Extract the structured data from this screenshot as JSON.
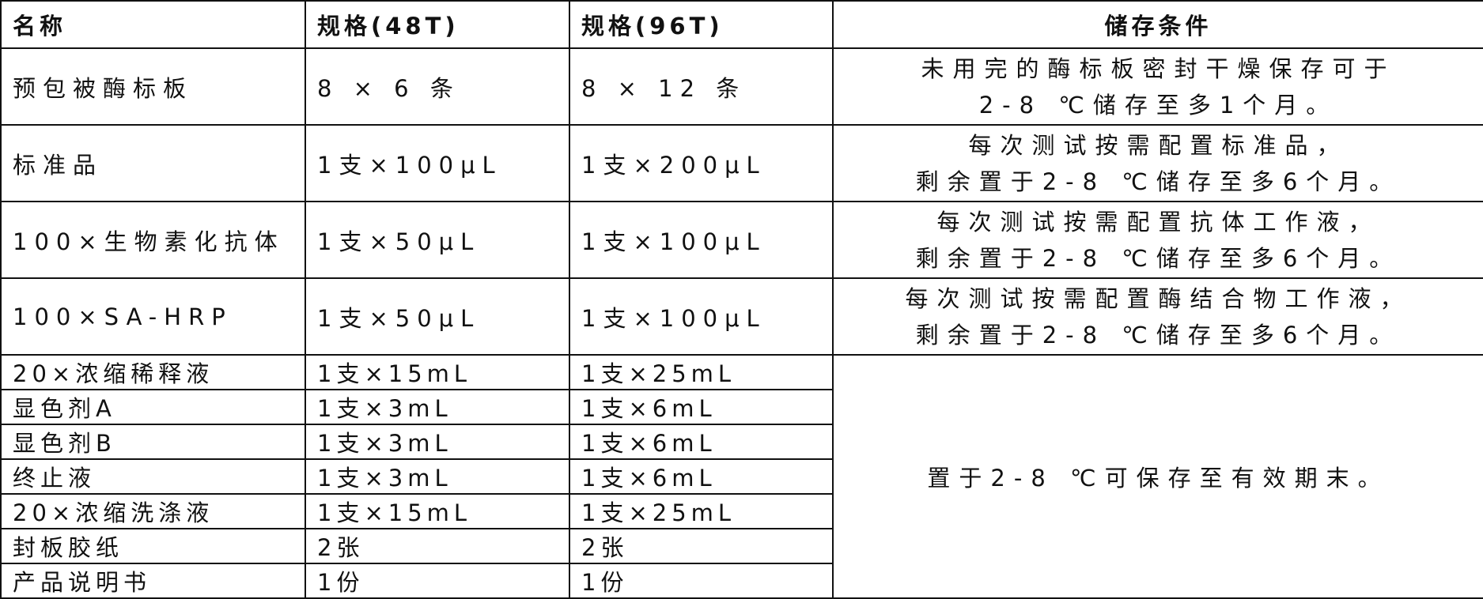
{
  "headers": [
    "名称",
    "规格(48T)",
    "规格(96T)",
    "储存条件"
  ],
  "rows": [
    {
      "name": "预包被酶标板",
      "spec48": "8 × 6 条",
      "spec96": "8 × 12 条",
      "storage_line1": "未用完的酶标板密封干燥保存可于",
      "storage_line2": "2-8 ℃储存至多1个月。"
    },
    {
      "name": "标准品",
      "spec48": "1支×100μL",
      "spec96": "1支×200μL",
      "storage_line1": "每次测试按需配置标准品，",
      "storage_line2": "剩余置于2-8 ℃储存至多6个月。"
    },
    {
      "name": "100×生物素化抗体",
      "spec48": "1支×50μL",
      "spec96": "1支×100μL",
      "storage_line1": "每次测试按需配置抗体工作液，",
      "storage_line2": "剩余置于2-8 ℃储存至多6个月。"
    },
    {
      "name": "100×SA-HRP",
      "spec48": "1支×50μL",
      "spec96": "1支×100μL",
      "storage_line1": "每次测试按需配置酶结合物工作液，",
      "storage_line2": "剩余置于2-8 ℃储存至多6个月。"
    },
    {
      "name": "20×浓缩稀释液",
      "spec48": "1支×15mL",
      "spec96": "1支×25mL"
    },
    {
      "name": "显色剂A",
      "spec48": "1支×3mL",
      "spec96": "1支×6mL"
    },
    {
      "name": "显色剂B",
      "spec48": "1支×3mL",
      "spec96": "1支×6mL"
    },
    {
      "name": "终止液",
      "spec48": "1支×3mL",
      "spec96": "1支×6mL"
    },
    {
      "name": "20×浓缩洗涤液",
      "spec48": "1支×15mL",
      "spec96": "1支×25mL"
    },
    {
      "name": "封板胶纸",
      "spec48": "2张",
      "spec96": "2张"
    },
    {
      "name": "产品说明书",
      "spec48": "1份",
      "spec96": "1份"
    }
  ],
  "shared_storage": "置于2-8 ℃可保存至有效期末。"
}
